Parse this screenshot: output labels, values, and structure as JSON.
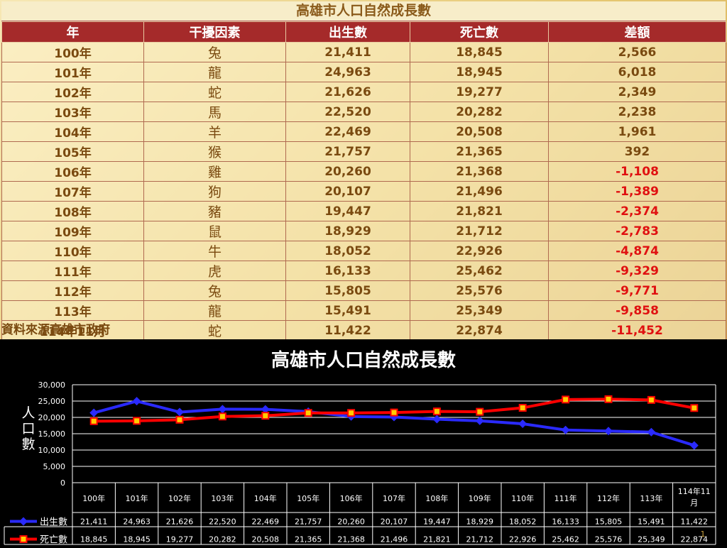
{
  "table": {
    "title": "高雄市人口自然成長數",
    "headers": [
      "年",
      "干擾因素",
      "出生數",
      "死亡數",
      "差額"
    ],
    "rows": [
      {
        "year": "100年",
        "zodiac": "兔",
        "births": "21,411",
        "deaths": "18,845",
        "diff": "2,566",
        "neg": false
      },
      {
        "year": "101年",
        "zodiac": "龍",
        "births": "24,963",
        "deaths": "18,945",
        "diff": "6,018",
        "neg": false
      },
      {
        "year": "102年",
        "zodiac": "蛇",
        "births": "21,626",
        "deaths": "19,277",
        "diff": "2,349",
        "neg": false
      },
      {
        "year": "103年",
        "zodiac": "馬",
        "births": "22,520",
        "deaths": "20,282",
        "diff": "2,238",
        "neg": false
      },
      {
        "year": "104年",
        "zodiac": "羊",
        "births": "22,469",
        "deaths": "20,508",
        "diff": "1,961",
        "neg": false
      },
      {
        "year": "105年",
        "zodiac": "猴",
        "births": "21,757",
        "deaths": "21,365",
        "diff": "392",
        "neg": false
      },
      {
        "year": "106年",
        "zodiac": "雞",
        "births": "20,260",
        "deaths": "21,368",
        "diff": "-1,108",
        "neg": true
      },
      {
        "year": "107年",
        "zodiac": "狗",
        "births": "20,107",
        "deaths": "21,496",
        "diff": "-1,389",
        "neg": true
      },
      {
        "year": "108年",
        "zodiac": "豬",
        "births": "19,447",
        "deaths": "21,821",
        "diff": "-2,374",
        "neg": true
      },
      {
        "year": "109年",
        "zodiac": "鼠",
        "births": "18,929",
        "deaths": "21,712",
        "diff": "-2,783",
        "neg": true
      },
      {
        "year": "110年",
        "zodiac": "牛",
        "births": "18,052",
        "deaths": "22,926",
        "diff": "-4,874",
        "neg": true
      },
      {
        "year": "111年",
        "zodiac": "虎",
        "births": "16,133",
        "deaths": "25,462",
        "diff": "-9,329",
        "neg": true
      },
      {
        "year": "112年",
        "zodiac": "兔",
        "births": "15,805",
        "deaths": "25,576",
        "diff": "-9,771",
        "neg": true
      },
      {
        "year": "113年",
        "zodiac": "龍",
        "births": "15,491",
        "deaths": "25,349",
        "diff": "-9,858",
        "neg": true
      },
      {
        "year": "114年11月",
        "zodiac": "蛇",
        "births": "11,422",
        "deaths": "22,874",
        "diff": "-11,452",
        "neg": true
      }
    ],
    "source": "資料來源高雄市政府"
  },
  "colors": {
    "births": "#2a2aff",
    "deaths": "#ff0000",
    "neg": "#e01010",
    "header": "#a52a2a"
  },
  "page_number": "1",
  "chart_data": {
    "type": "line",
    "title": "高雄市人口自然成長數",
    "ylabel": "人口數",
    "xlabel": "",
    "ylim": [
      0,
      30000
    ],
    "yticks": [
      "0",
      "5,000",
      "10,000",
      "15,000",
      "20,000",
      "25,000",
      "30,000"
    ],
    "categories": [
      "100年",
      "101年",
      "102年",
      "103年",
      "104年",
      "105年",
      "106年",
      "107年",
      "108年",
      "109年",
      "110年",
      "111年",
      "112年",
      "113年",
      "114年11月"
    ],
    "category_lines": [
      [
        "100年"
      ],
      [
        "101年"
      ],
      [
        "102年"
      ],
      [
        "103年"
      ],
      [
        "104年"
      ],
      [
        "105年"
      ],
      [
        "106年"
      ],
      [
        "107年"
      ],
      [
        "108年"
      ],
      [
        "109年"
      ],
      [
        "110年"
      ],
      [
        "111年"
      ],
      [
        "112年"
      ],
      [
        "113年"
      ],
      [
        "114年11",
        "月"
      ]
    ],
    "grid": true,
    "legend": "data-table",
    "series": [
      {
        "name": "出生數",
        "color": "#2a2aff",
        "marker": "diamond",
        "values": [
          21411,
          24963,
          21626,
          22520,
          22469,
          21757,
          20260,
          20107,
          19447,
          18929,
          18052,
          16133,
          15805,
          15491,
          11422
        ],
        "labels": [
          "21,411",
          "24,963",
          "21,626",
          "22,520",
          "22,469",
          "21,757",
          "20,260",
          "20,107",
          "19,447",
          "18,929",
          "18,052",
          "16,133",
          "15,805",
          "15,491",
          "11,422"
        ]
      },
      {
        "name": "死亡數",
        "color": "#ff0000",
        "marker": "square",
        "values": [
          18845,
          18945,
          19277,
          20282,
          20508,
          21365,
          21368,
          21496,
          21821,
          21712,
          22926,
          25462,
          25576,
          25349,
          22874
        ],
        "labels": [
          "18,845",
          "18,945",
          "19,277",
          "20,282",
          "20,508",
          "21,365",
          "21,368",
          "21,496",
          "21,821",
          "21,712",
          "22,926",
          "25,462",
          "25,576",
          "25,349",
          "22,874"
        ]
      }
    ]
  }
}
